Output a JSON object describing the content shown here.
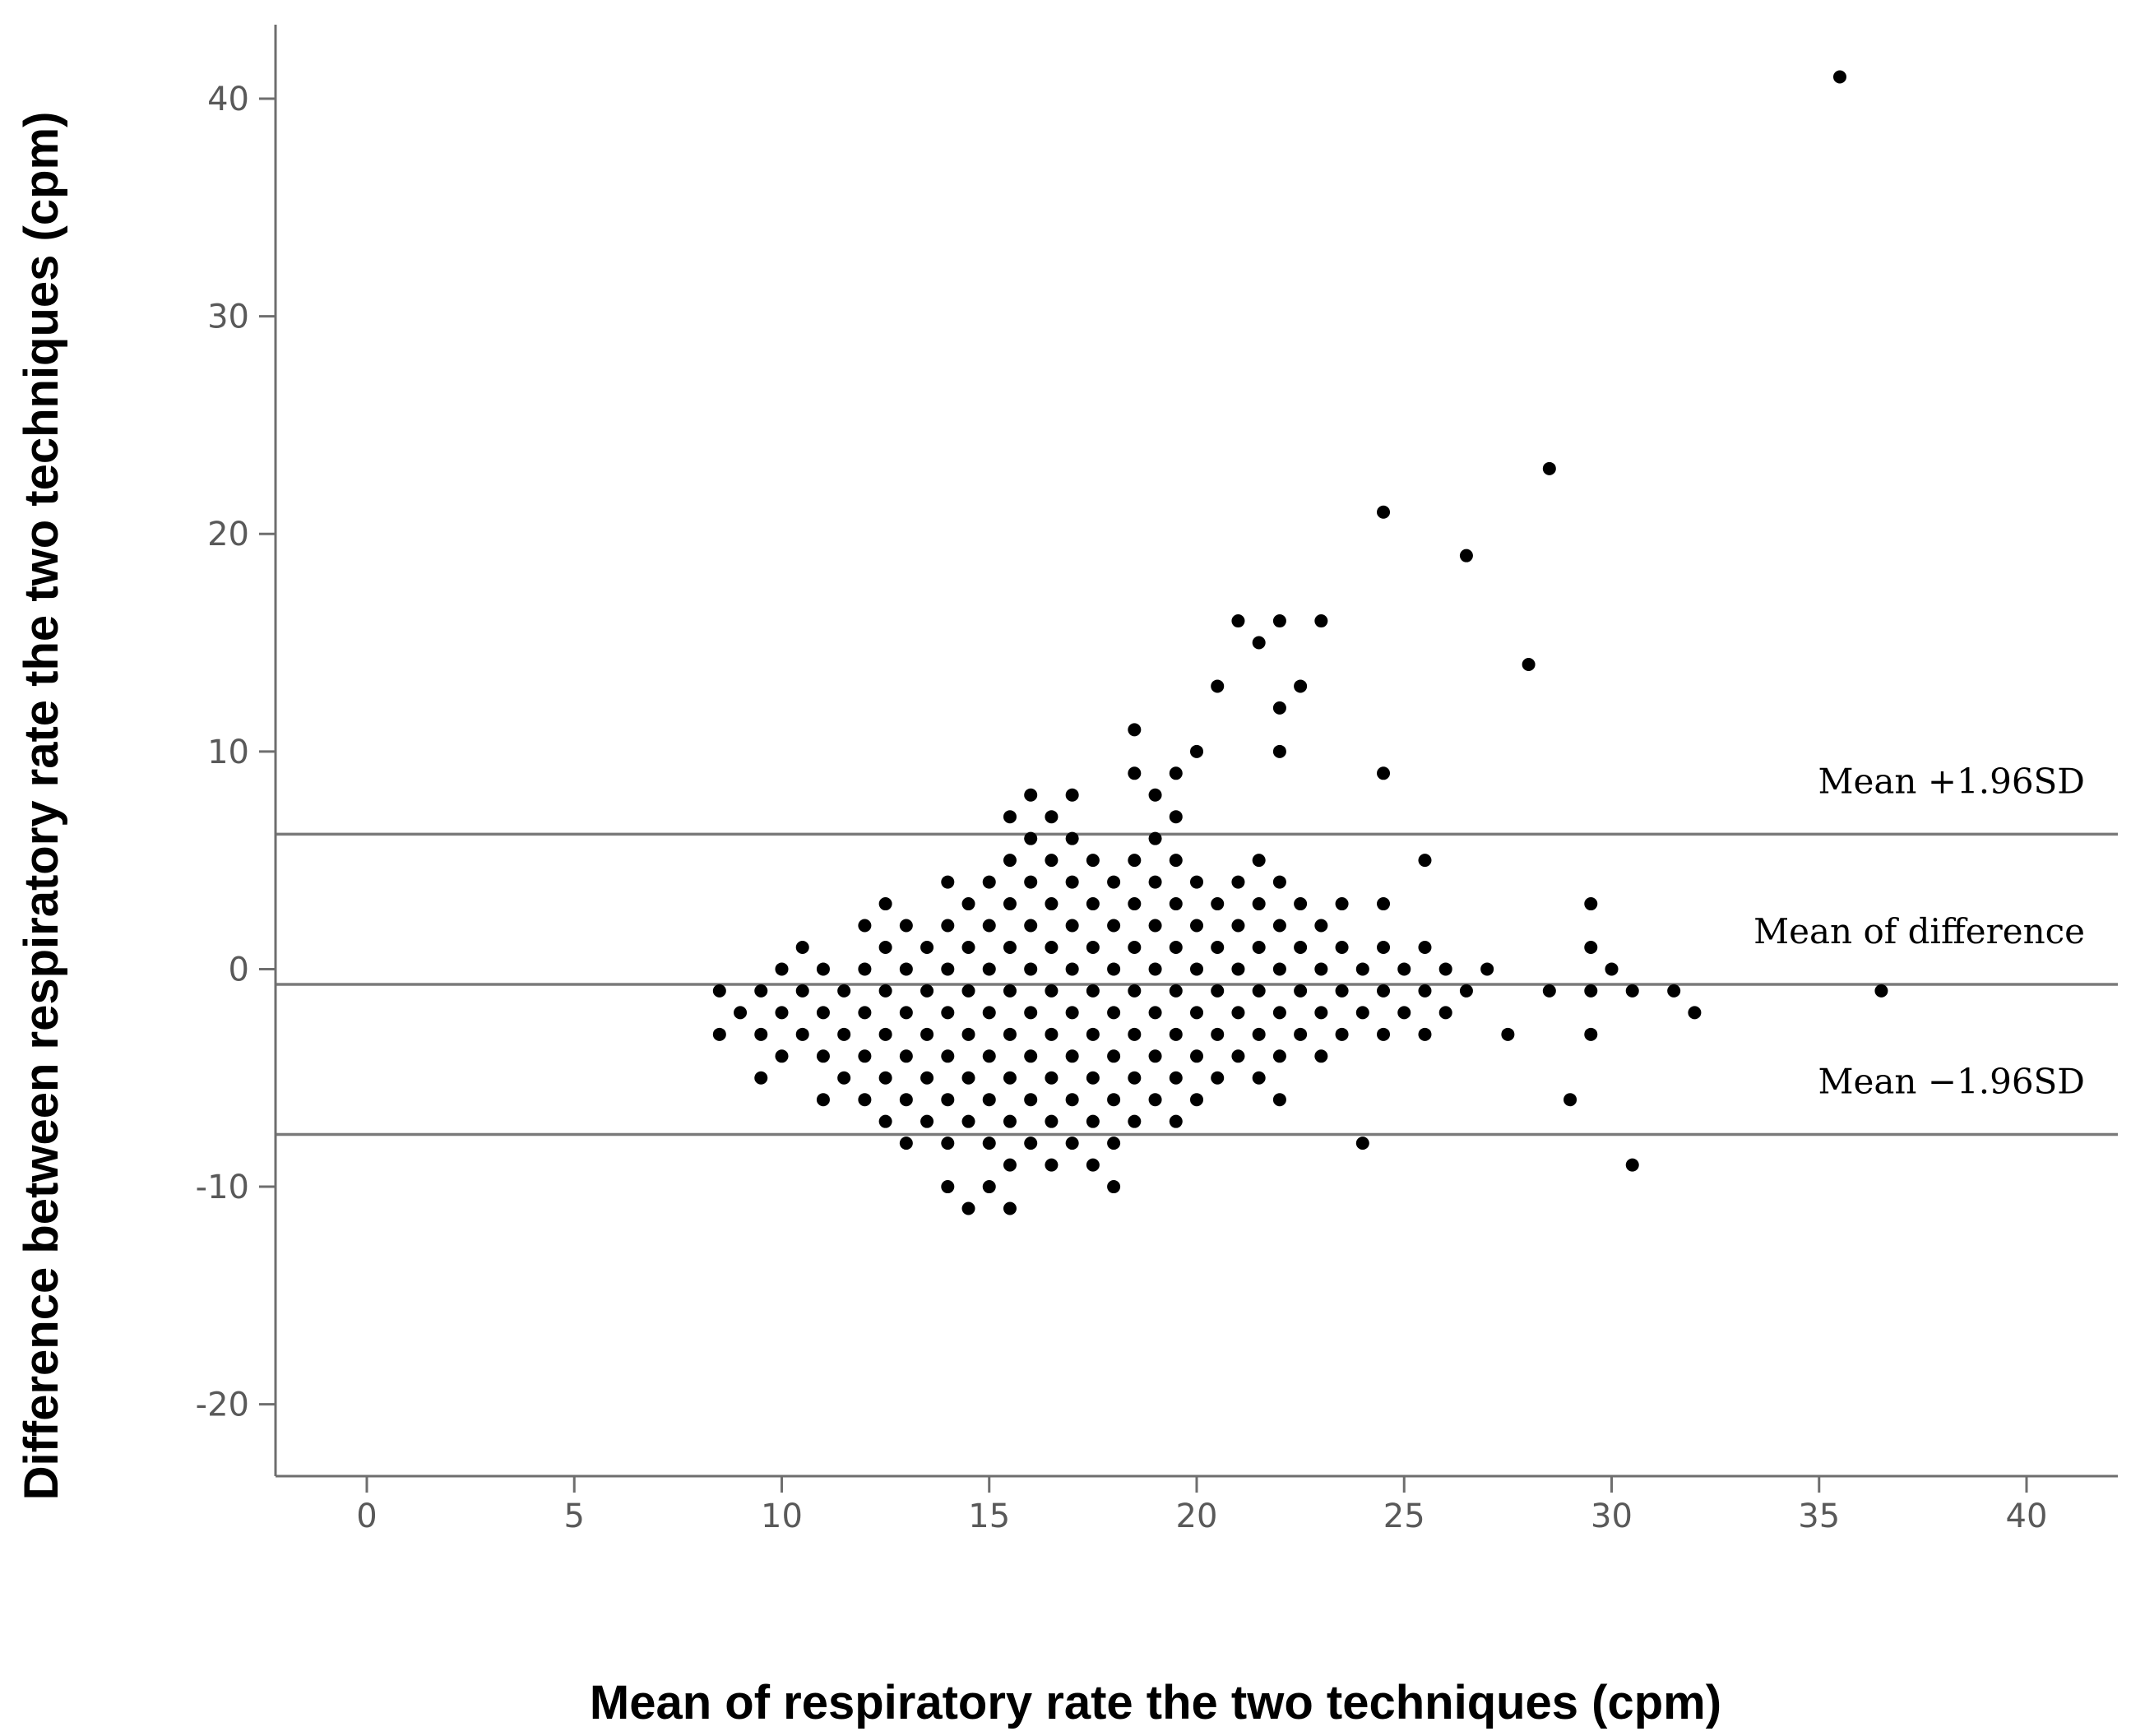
{
  "colors": {
    "axis": "#6e6e6e",
    "reference_line": "#7a7a7a",
    "points": "#000000",
    "background": "#ffffff"
  },
  "chart_data": {
    "type": "scatter",
    "title": "",
    "xlabel": "Mean of respiratory rate the two techniques (cpm)",
    "ylabel": "Difference between respiratory rate the two techniques (cpm)",
    "xlim": [
      -2.2,
      42.2
    ],
    "ylim": [
      -23.3,
      43.4
    ],
    "xticks": [
      0,
      5,
      10,
      15,
      20,
      25,
      30,
      35,
      40
    ],
    "xtick_labels": [
      "0",
      "5",
      "10",
      "15",
      "20",
      "25",
      "30",
      "35",
      "40"
    ],
    "yticks": [
      40,
      30,
      20,
      10,
      0,
      -10,
      -20
    ],
    "ytick_labels": [
      "40",
      "30",
      "20",
      "10",
      "0",
      "-10",
      "-20"
    ],
    "grid": false,
    "reference_lines": [
      {
        "name": "upper-limit",
        "label": "Mean +1.96SD",
        "y": 6.2
      },
      {
        "name": "mean-difference",
        "label": "Mean of difference",
        "y": -0.7
      },
      {
        "name": "lower-limit",
        "label": "Mean −1.96SD",
        "y": -7.6
      }
    ],
    "points": [
      [
        8.5,
        -1
      ],
      [
        8.5,
        -3
      ],
      [
        9,
        -2
      ],
      [
        9.5,
        -1
      ],
      [
        9.5,
        -3
      ],
      [
        9.5,
        -5
      ],
      [
        10,
        0
      ],
      [
        10,
        -2
      ],
      [
        10,
        -4
      ],
      [
        10.5,
        1
      ],
      [
        10.5,
        -1
      ],
      [
        10.5,
        -3
      ],
      [
        11,
        0
      ],
      [
        11,
        -2
      ],
      [
        11,
        -4
      ],
      [
        11,
        -6
      ],
      [
        11.5,
        -1
      ],
      [
        11.5,
        -3
      ],
      [
        11.5,
        -5
      ],
      [
        12,
        2
      ],
      [
        12,
        0
      ],
      [
        12,
        -2
      ],
      [
        12,
        -4
      ],
      [
        12,
        -6
      ],
      [
        12.5,
        3
      ],
      [
        12.5,
        1
      ],
      [
        12.5,
        -1
      ],
      [
        12.5,
        -3
      ],
      [
        12.5,
        -5
      ],
      [
        12.5,
        -7
      ],
      [
        13,
        2
      ],
      [
        13,
        0
      ],
      [
        13,
        -2
      ],
      [
        13,
        -4
      ],
      [
        13,
        -6
      ],
      [
        13,
        -8
      ],
      [
        13.5,
        1
      ],
      [
        13.5,
        -1
      ],
      [
        13.5,
        -3
      ],
      [
        13.5,
        -5
      ],
      [
        13.5,
        -7
      ],
      [
        14,
        4
      ],
      [
        14,
        2
      ],
      [
        14,
        0
      ],
      [
        14,
        -2
      ],
      [
        14,
        -4
      ],
      [
        14,
        -6
      ],
      [
        14,
        -8
      ],
      [
        14,
        -10
      ],
      [
        14.5,
        3
      ],
      [
        14.5,
        1
      ],
      [
        14.5,
        -1
      ],
      [
        14.5,
        -3
      ],
      [
        14.5,
        -5
      ],
      [
        14.5,
        -7
      ],
      [
        14.5,
        -11
      ],
      [
        15,
        4
      ],
      [
        15,
        2
      ],
      [
        15,
        0
      ],
      [
        15,
        -2
      ],
      [
        15,
        -4
      ],
      [
        15,
        -6
      ],
      [
        15,
        -8
      ],
      [
        15,
        -10
      ],
      [
        15.5,
        7
      ],
      [
        15.5,
        5
      ],
      [
        15.5,
        3
      ],
      [
        15.5,
        1
      ],
      [
        15.5,
        -1
      ],
      [
        15.5,
        -3
      ],
      [
        15.5,
        -5
      ],
      [
        15.5,
        -7
      ],
      [
        15.5,
        -9
      ],
      [
        15.5,
        -11
      ],
      [
        16,
        8
      ],
      [
        16,
        6
      ],
      [
        16,
        4
      ],
      [
        16,
        2
      ],
      [
        16,
        0
      ],
      [
        16,
        -2
      ],
      [
        16,
        -4
      ],
      [
        16,
        -6
      ],
      [
        16,
        -8
      ],
      [
        16.5,
        7
      ],
      [
        16.5,
        5
      ],
      [
        16.5,
        3
      ],
      [
        16.5,
        1
      ],
      [
        16.5,
        -1
      ],
      [
        16.5,
        -3
      ],
      [
        16.5,
        -5
      ],
      [
        16.5,
        -7
      ],
      [
        16.5,
        -9
      ],
      [
        17,
        8
      ],
      [
        17,
        6
      ],
      [
        17,
        4
      ],
      [
        17,
        2
      ],
      [
        17,
        0
      ],
      [
        17,
        -2
      ],
      [
        17,
        -4
      ],
      [
        17,
        -6
      ],
      [
        17,
        -8
      ],
      [
        17.5,
        5
      ],
      [
        17.5,
        3
      ],
      [
        17.5,
        1
      ],
      [
        17.5,
        -1
      ],
      [
        17.5,
        -3
      ],
      [
        17.5,
        -5
      ],
      [
        17.5,
        -7
      ],
      [
        17.5,
        -9
      ],
      [
        18,
        4
      ],
      [
        18,
        2
      ],
      [
        18,
        0
      ],
      [
        18,
        -2
      ],
      [
        18,
        -4
      ],
      [
        18,
        -6
      ],
      [
        18,
        -8
      ],
      [
        18,
        -10
      ],
      [
        18.5,
        11
      ],
      [
        18.5,
        9
      ],
      [
        18.5,
        5
      ],
      [
        18.5,
        3
      ],
      [
        18.5,
        1
      ],
      [
        18.5,
        -1
      ],
      [
        18.5,
        -3
      ],
      [
        18.5,
        -5
      ],
      [
        18.5,
        -7
      ],
      [
        19,
        8
      ],
      [
        19,
        6
      ],
      [
        19,
        4
      ],
      [
        19,
        2
      ],
      [
        19,
        0
      ],
      [
        19,
        -2
      ],
      [
        19,
        -4
      ],
      [
        19,
        -6
      ],
      [
        19.5,
        9
      ],
      [
        19.5,
        7
      ],
      [
        19.5,
        5
      ],
      [
        19.5,
        3
      ],
      [
        19.5,
        1
      ],
      [
        19.5,
        -1
      ],
      [
        19.5,
        -3
      ],
      [
        19.5,
        -5
      ],
      [
        19.5,
        -7
      ],
      [
        20,
        10
      ],
      [
        20,
        4
      ],
      [
        20,
        2
      ],
      [
        20,
        0
      ],
      [
        20,
        -2
      ],
      [
        20,
        -4
      ],
      [
        20,
        -6
      ],
      [
        20.5,
        13
      ],
      [
        20.5,
        3
      ],
      [
        20.5,
        1
      ],
      [
        20.5,
        -1
      ],
      [
        20.5,
        -3
      ],
      [
        20.5,
        -5
      ],
      [
        21,
        16
      ],
      [
        21,
        4
      ],
      [
        21,
        2
      ],
      [
        21,
        0
      ],
      [
        21,
        -2
      ],
      [
        21,
        -4
      ],
      [
        21.5,
        15
      ],
      [
        21.5,
        5
      ],
      [
        21.5,
        3
      ],
      [
        21.5,
        1
      ],
      [
        21.5,
        -1
      ],
      [
        21.5,
        -3
      ],
      [
        21.5,
        -5
      ],
      [
        22,
        16
      ],
      [
        22,
        12
      ],
      [
        22,
        10
      ],
      [
        22,
        4
      ],
      [
        22,
        2
      ],
      [
        22,
        0
      ],
      [
        22,
        -2
      ],
      [
        22,
        -4
      ],
      [
        22,
        -6
      ],
      [
        22.5,
        13
      ],
      [
        22.5,
        3
      ],
      [
        22.5,
        1
      ],
      [
        22.5,
        -1
      ],
      [
        22.5,
        -3
      ],
      [
        23,
        16
      ],
      [
        23,
        2
      ],
      [
        23,
        0
      ],
      [
        23,
        -2
      ],
      [
        23,
        -4
      ],
      [
        23.5,
        3
      ],
      [
        23.5,
        1
      ],
      [
        23.5,
        -1
      ],
      [
        23.5,
        -3
      ],
      [
        24,
        0
      ],
      [
        24,
        -2
      ],
      [
        24,
        -8
      ],
      [
        24.5,
        21
      ],
      [
        24.5,
        9
      ],
      [
        24.5,
        3
      ],
      [
        24.5,
        1
      ],
      [
        24.5,
        -1
      ],
      [
        24.5,
        -3
      ],
      [
        25,
        0
      ],
      [
        25,
        -2
      ],
      [
        25.5,
        5
      ],
      [
        25.5,
        1
      ],
      [
        25.5,
        -1
      ],
      [
        25.5,
        -3
      ],
      [
        26,
        0
      ],
      [
        26,
        -2
      ],
      [
        26.5,
        19
      ],
      [
        26.5,
        -1
      ],
      [
        27,
        0
      ],
      [
        27.5,
        -3
      ],
      [
        28,
        14
      ],
      [
        28.5,
        23
      ],
      [
        28.5,
        -1
      ],
      [
        29,
        -6
      ],
      [
        29.5,
        3
      ],
      [
        29.5,
        1
      ],
      [
        29.5,
        -1
      ],
      [
        29.5,
        -3
      ],
      [
        30,
        0
      ],
      [
        30.5,
        -1
      ],
      [
        30.5,
        -9
      ],
      [
        31.5,
        -1
      ],
      [
        32,
        -2
      ],
      [
        35.5,
        41
      ],
      [
        36.5,
        -1
      ]
    ]
  }
}
